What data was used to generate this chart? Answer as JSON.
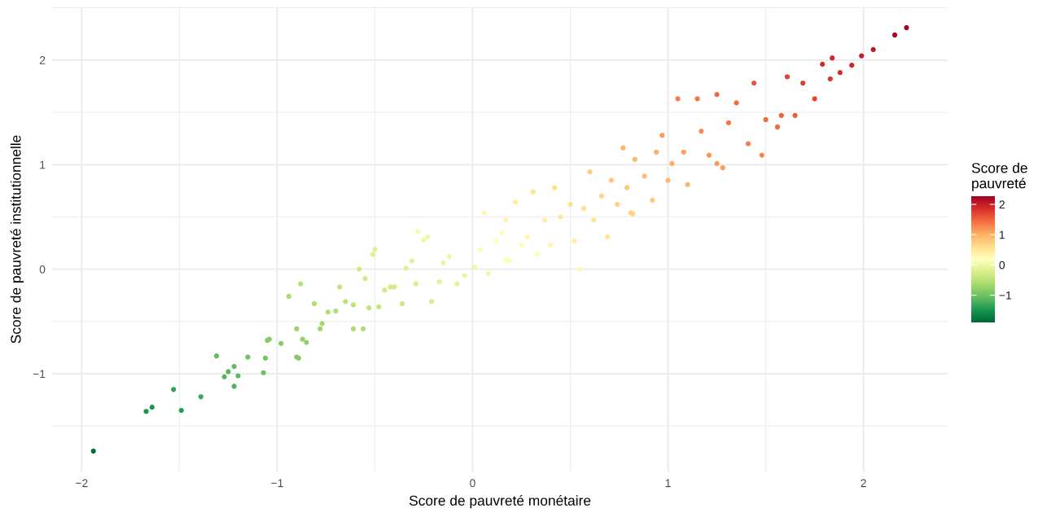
{
  "chart_data": {
    "type": "scatter",
    "xlabel": "Score de pauvreté monétaire",
    "ylabel": "Score de pauvreté institutionnelle",
    "clabel": "Score de\npauvreté",
    "x": [
      -1.94,
      -1.67,
      -1.64,
      -1.53,
      -1.49,
      -1.39,
      -1.31,
      -1.27,
      -1.25,
      -1.22,
      -1.22,
      -1.2,
      -1.15,
      -1.07,
      -1.06,
      -1.05,
      -1.04,
      -0.98,
      -0.94,
      -0.9,
      -0.9,
      -0.88,
      -0.89,
      -0.87,
      -0.85,
      -0.81,
      -0.78,
      -0.77,
      -0.74,
      -0.7,
      -0.68,
      -0.65,
      -0.61,
      -0.61,
      -0.58,
      -0.56,
      -0.55,
      -0.53,
      -0.51,
      -0.5,
      -0.48,
      -0.45,
      -0.42,
      -0.4,
      -0.36,
      -0.34,
      -0.31,
      -0.29,
      -0.28,
      -0.25,
      -0.23,
      -0.21,
      -0.17,
      -0.15,
      -0.12,
      -0.08,
      -0.04,
      0.01,
      0.04,
      0.06,
      0.08,
      0.12,
      0.15,
      0.17,
      0.19,
      0.22,
      0.25,
      0.28,
      0.31,
      0.33,
      0.37,
      0.4,
      0.42,
      0.45,
      0.5,
      0.52,
      0.55,
      0.57,
      0.6,
      0.62,
      0.66,
      0.69,
      0.71,
      0.74,
      0.77,
      0.79,
      0.82,
      0.83,
      0.88,
      0.92,
      0.94,
      0.97,
      1.0,
      1.02,
      1.05,
      1.08,
      1.1,
      1.15,
      1.17,
      1.21,
      1.25,
      1.28,
      1.31,
      1.35,
      1.41,
      1.44,
      1.48,
      1.5,
      1.56,
      1.61,
      1.65,
      1.69,
      1.75,
      1.79,
      1.84,
      1.83,
      1.88,
      1.94,
      1.99,
      2.05,
      2.16,
      2.22,
      0.17,
      0.81,
      1.25,
      1.58
    ],
    "values": [
      -1.74,
      -1.36,
      -1.32,
      -1.15,
      -1.35,
      -1.22,
      -0.83,
      -1.03,
      -0.98,
      -0.93,
      -1.12,
      -1.02,
      -0.84,
      -0.99,
      -0.85,
      -0.68,
      -0.67,
      -0.71,
      -0.26,
      -0.84,
      -0.57,
      -0.14,
      -0.85,
      -0.67,
      -0.7,
      -0.33,
      -0.57,
      -0.52,
      -0.41,
      -0.4,
      -0.17,
      -0.31,
      -0.57,
      -0.34,
      0.0,
      -0.57,
      -0.09,
      -0.37,
      0.14,
      0.19,
      -0.36,
      -0.2,
      -0.17,
      -0.17,
      -0.33,
      0.01,
      0.08,
      -0.14,
      0.36,
      0.28,
      0.31,
      -0.31,
      -0.12,
      0.06,
      0.12,
      -0.14,
      -0.06,
      0.02,
      0.19,
      0.54,
      -0.04,
      0.27,
      0.35,
      0.47,
      0.08,
      0.64,
      0.23,
      0.31,
      0.74,
      0.14,
      0.47,
      0.23,
      0.78,
      0.5,
      0.62,
      0.27,
      0.0,
      0.58,
      0.93,
      0.47,
      0.7,
      0.31,
      0.85,
      0.62,
      1.16,
      0.78,
      0.53,
      1.05,
      0.89,
      0.66,
      1.12,
      1.28,
      0.85,
      1.01,
      1.63,
      1.12,
      0.81,
      1.63,
      1.32,
      1.09,
      1.67,
      0.97,
      1.4,
      1.59,
      1.2,
      1.78,
      1.09,
      1.43,
      1.36,
      1.84,
      1.47,
      1.78,
      1.63,
      1.96,
      2.02,
      1.82,
      1.88,
      1.95,
      2.04,
      2.1,
      2.24,
      2.31,
      0.09,
      0.54,
      1.01,
      1.47
    ],
    "cvalues": [
      -1.84,
      -1.52,
      -1.48,
      -1.34,
      -1.42,
      -1.31,
      -1.07,
      -1.15,
      -1.12,
      -1.08,
      -1.17,
      -1.11,
      -1.0,
      -1.03,
      -0.96,
      -0.87,
      -0.86,
      -0.85,
      -0.6,
      -0.87,
      -0.74,
      -0.51,
      -0.87,
      -0.77,
      -0.78,
      -0.57,
      -0.68,
      -0.65,
      -0.58,
      -0.55,
      -0.43,
      -0.48,
      -0.59,
      -0.48,
      -0.29,
      -0.57,
      -0.32,
      -0.45,
      -0.19,
      -0.16,
      -0.42,
      -0.33,
      -0.3,
      -0.29,
      -0.35,
      -0.17,
      -0.12,
      -0.22,
      0.04,
      0.02,
      0.04,
      -0.26,
      -0.15,
      -0.05,
      0.0,
      -0.11,
      -0.05,
      0.02,
      0.12,
      0.3,
      0.02,
      0.2,
      0.25,
      0.32,
      0.14,
      0.43,
      0.24,
      0.3,
      0.53,
      0.24,
      0.42,
      0.32,
      0.6,
      0.48,
      0.56,
      0.4,
      0.28,
      0.58,
      0.77,
      0.55,
      0.68,
      0.5,
      0.78,
      0.68,
      0.97,
      0.79,
      0.68,
      0.94,
      0.89,
      0.79,
      1.03,
      1.13,
      0.93,
      1.02,
      1.34,
      1.1,
      0.96,
      1.39,
      1.25,
      1.15,
      1.46,
      1.13,
      1.36,
      1.47,
      1.31,
      1.61,
      1.29,
      1.47,
      1.46,
      1.73,
      1.56,
      1.74,
      1.69,
      1.88,
      1.93,
      1.83,
      1.88,
      1.95,
      2.02,
      2.08,
      2.2,
      2.27,
      0.13,
      0.68,
      1.13,
      1.53
    ],
    "xlim": [
      -2.15,
      2.43
    ],
    "ylim": [
      -1.94,
      2.51
    ],
    "xticks": [
      {
        "value": -2,
        "label": "−2"
      },
      {
        "value": -1.5,
        "label": null
      },
      {
        "value": -1,
        "label": "−1"
      },
      {
        "value": -0.5,
        "label": null
      },
      0,
      {
        "value": 0.5,
        "label": null
      },
      1,
      {
        "value": 1.5,
        "label": null
      },
      2
    ],
    "yticks": [
      {
        "value": -1.5,
        "label": null
      },
      {
        "value": -1,
        "label": "−1"
      },
      {
        "value": -0.5,
        "label": null
      },
      0,
      {
        "value": 0.5,
        "label": null
      },
      1,
      {
        "value": 1.5,
        "label": null
      },
      2,
      {
        "value": 2.5,
        "label": null
      }
    ],
    "clim": [
      -1.9,
      2.27
    ],
    "cticks": [
      {
        "value": -1,
        "label": "−1"
      },
      0,
      1,
      2
    ],
    "grid": true,
    "marker": "circle"
  }
}
